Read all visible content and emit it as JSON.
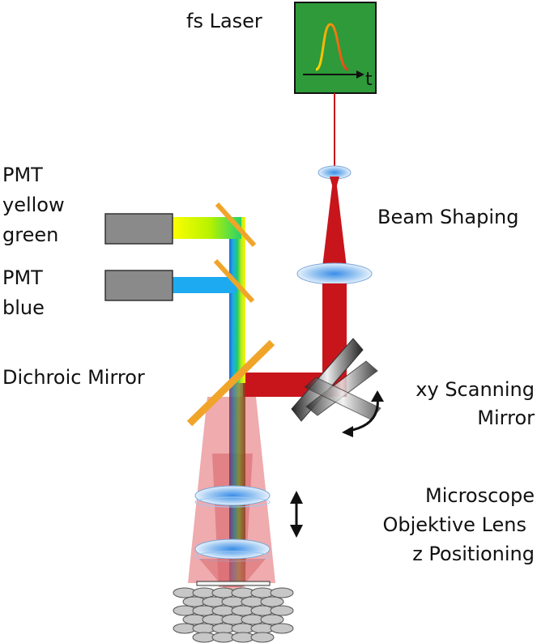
{
  "labels": {
    "laser": "fs Laser",
    "time_axis": "t",
    "pmt_yellow_green": [
      "PMT",
      "yellow",
      "green"
    ],
    "pmt_blue": [
      "PMT",
      "blue"
    ],
    "beam_shaping": "Beam Shaping",
    "dichroic_mirror": "Dichroic Mirror",
    "scanning_mirror": [
      "xy Scanning",
      "Mirror"
    ],
    "objective": [
      "Microscope",
      "Objektive Lens",
      "z Positioning"
    ]
  },
  "colors": {
    "laser_box": "#2e9a3a",
    "laser_beam": "#c8151b",
    "excitation_cone": "#e8888c",
    "pmt_box": "#8a8a8a",
    "mirror": "#f0a52a",
    "lens": "#a8cdf0",
    "emission_blue": "#1eaaf0",
    "cells": "#c7c7c7"
  },
  "icons": {
    "pulse": "gaussian-pulse-icon",
    "arrow_rotate": "curved-double-arrow-icon",
    "arrow_z": "vertical-double-arrow-icon"
  }
}
